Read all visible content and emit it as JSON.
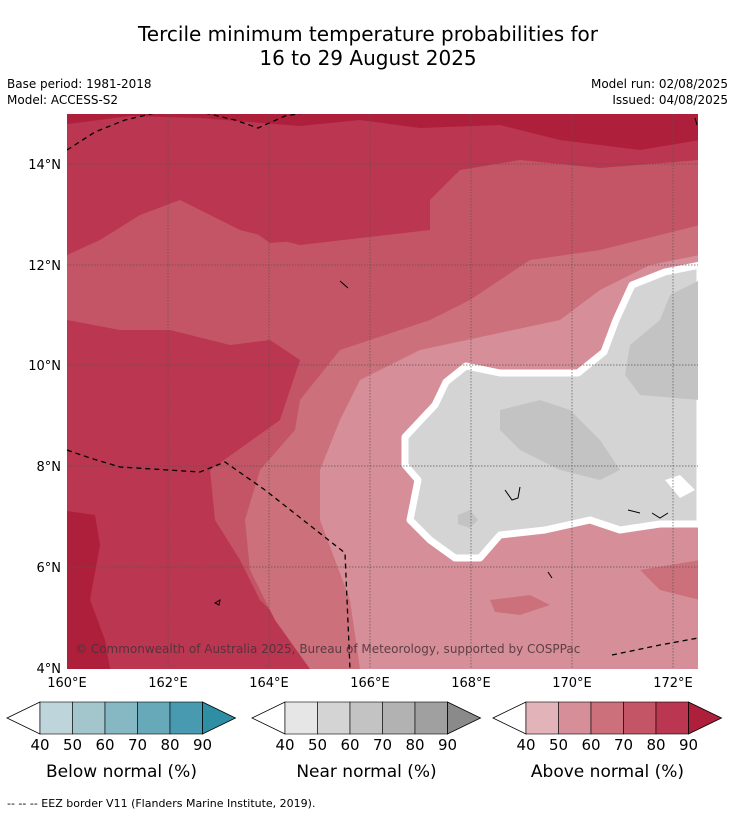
{
  "title_line1": "Tercile minimum temperature probabilities for",
  "title_line2": "16 to 29 August 2025",
  "meta": {
    "base_period": "Base period: 1981-2018",
    "model": "Model: ACCESS-S2",
    "model_run": "Model run: 02/08/2025",
    "issued": "Issued: 04/08/2025"
  },
  "map": {
    "lat_labels": [
      "14°N",
      "12°N",
      "10°N",
      "8°N",
      "6°N",
      "4°N"
    ],
    "lon_labels": [
      "160°E",
      "162°E",
      "164°E",
      "166°E",
      "168°E",
      "170°E",
      "172°E"
    ],
    "copyright": "© Commonwealth of Australia 2025, Bureau of Meteorology, supported by COSPPac"
  },
  "legends": [
    {
      "title": "Below normal (%)",
      "ticks": [
        "40",
        "50",
        "60",
        "70",
        "80",
        "90"
      ],
      "colors": [
        "#bfd5dc",
        "#a3c6cd",
        "#86b8c4",
        "#68a9b9",
        "#479ab0",
        "#2e8ea4"
      ]
    },
    {
      "title": "Near normal (%)",
      "ticks": [
        "40",
        "50",
        "60",
        "70",
        "80",
        "90"
      ],
      "colors": [
        "#e6e6e6",
        "#d4d4d4",
        "#c3c3c3",
        "#b2b2b2",
        "#a0a0a0",
        "#8a8a8a"
      ]
    },
    {
      "title": "Above normal (%)",
      "ticks": [
        "40",
        "50",
        "60",
        "70",
        "80",
        "90"
      ],
      "colors": [
        "#e2b4ba",
        "#d68f99",
        "#cc707c",
        "#c45566",
        "#bb3650",
        "#ae1f3c"
      ]
    }
  ],
  "footnote": "--  --  -- EEZ border V11 (Flanders Marine Institute, 2019)."
}
